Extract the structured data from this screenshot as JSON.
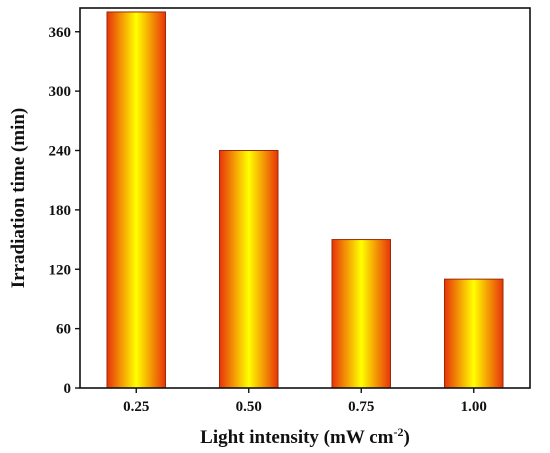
{
  "chart_data": {
    "type": "bar",
    "categories": [
      "0.25",
      "0.50",
      "0.75",
      "1.00"
    ],
    "values": [
      380,
      240,
      150,
      110
    ],
    "xlabel": "Light intensity (mW cm",
    "xlabel_superscript": "-2",
    "xlabel_suffix": ")",
    "ylabel": "Irradiation time (min)",
    "ylim": [
      0,
      384
    ],
    "yticks": [
      0,
      60,
      120,
      180,
      240,
      300,
      360
    ],
    "grid": false,
    "legend": "none",
    "colors": {
      "bar_edge": "#e8340a",
      "bar_center": "#ffff00",
      "bar_outline": "#9a2a05",
      "axis": "#111111"
    }
  }
}
